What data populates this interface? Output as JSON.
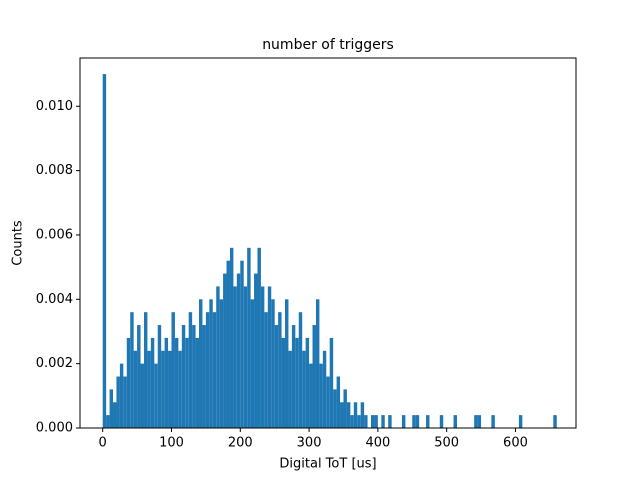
{
  "chart_data": {
    "type": "histogram",
    "title": "number of triggers",
    "xlabel": "Digital ToT [us]",
    "ylabel": "Counts",
    "color": "#1f77b4",
    "bins": [
      0,
      5,
      10,
      15,
      20,
      25,
      30,
      35,
      40,
      45,
      50,
      55,
      60,
      65,
      70,
      75,
      80,
      85,
      90,
      95,
      100,
      105,
      110,
      115,
      120,
      125,
      130,
      135,
      140,
      145,
      150,
      155,
      160,
      165,
      170,
      175,
      180,
      185,
      190,
      195,
      200,
      205,
      210,
      215,
      220,
      225,
      230,
      235,
      240,
      245,
      250,
      255,
      260,
      265,
      270,
      275,
      280,
      285,
      290,
      295,
      300,
      305,
      310,
      315,
      320,
      325,
      330,
      335,
      340,
      345,
      350,
      355,
      360,
      365,
      370,
      375,
      380,
      385,
      390,
      395,
      400,
      405,
      410,
      415,
      420,
      425,
      430,
      435,
      440,
      445,
      450,
      455,
      460,
      465,
      470,
      475,
      480,
      485,
      490,
      495,
      500,
      505,
      510,
      515,
      520,
      525,
      530,
      535,
      540,
      545,
      550,
      555,
      560,
      565,
      570,
      575,
      580,
      585,
      590,
      595,
      600,
      605,
      610,
      615,
      620,
      625,
      630,
      635,
      640,
      645,
      650,
      655,
      660
    ],
    "values": [
      0.011,
      0.0004,
      0.0012,
      0.0008,
      0.0016,
      0.002,
      0.0016,
      0.0028,
      0.0036,
      0.0024,
      0.0032,
      0.002,
      0.0036,
      0.0024,
      0.0028,
      0.002,
      0.0032,
      0.0024,
      0.0028,
      0.0024,
      0.0036,
      0.0028,
      0.0024,
      0.0032,
      0.0028,
      0.0036,
      0.0032,
      0.0028,
      0.004,
      0.0032,
      0.0036,
      0.004,
      0.0036,
      0.0044,
      0.004,
      0.0048,
      0.0052,
      0.0056,
      0.0044,
      0.0048,
      0.0052,
      0.0044,
      0.0056,
      0.004,
      0.0048,
      0.0056,
      0.0044,
      0.0036,
      0.0044,
      0.004,
      0.0032,
      0.0036,
      0.0028,
      0.004,
      0.0024,
      0.0032,
      0.0028,
      0.0036,
      0.0024,
      0.0028,
      0.002,
      0.0032,
      0.004,
      0.002,
      0.0024,
      0.0016,
      0.0028,
      0.0012,
      0.0016,
      0.0008,
      0.0012,
      0.0008,
      0.0004,
      0.0008,
      0.0004,
      0.0008,
      0.0004,
      0,
      0.0004,
      0.0004,
      0,
      0.0004,
      0,
      0.0004,
      0,
      0,
      0,
      0.0004,
      0,
      0,
      0.0004,
      0.0004,
      0,
      0,
      0.0004,
      0,
      0,
      0,
      0.0004,
      0,
      0,
      0,
      0.0004,
      0,
      0,
      0,
      0,
      0,
      0.0004,
      0.0004,
      0,
      0,
      0,
      0.0004,
      0,
      0,
      0,
      0,
      0,
      0,
      0,
      0.0004,
      0,
      0,
      0,
      0,
      0,
      0,
      0,
      0,
      0,
      0.0004
    ],
    "xlim": [
      -33,
      688
    ],
    "ylim": [
      0,
      0.0115
    ],
    "xticks": [
      0,
      100,
      200,
      300,
      400,
      500,
      600
    ],
    "yticks": [
      {
        "value": 0,
        "label": "0.000"
      },
      {
        "value": 0.002,
        "label": "0.002"
      },
      {
        "value": 0.004,
        "label": "0.004"
      },
      {
        "value": 0.006,
        "label": "0.006"
      },
      {
        "value": 0.008,
        "label": "0.008"
      },
      {
        "value": 0.01,
        "label": "0.010"
      }
    ]
  }
}
